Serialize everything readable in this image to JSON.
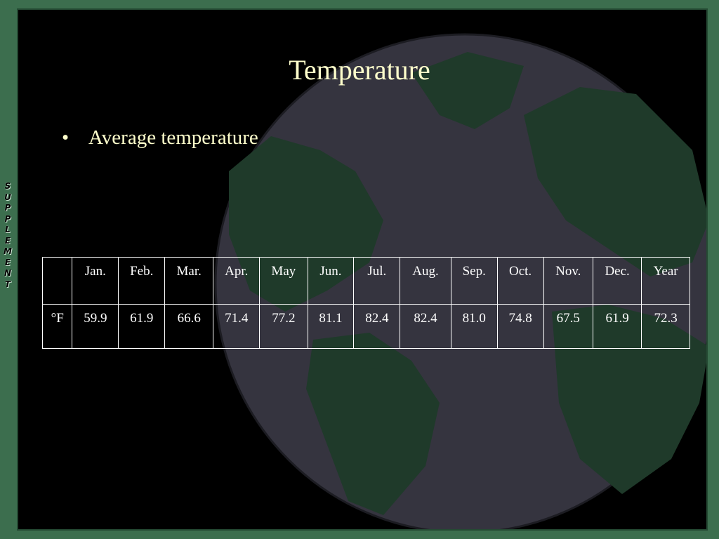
{
  "slide": {
    "title": "Temperature",
    "bullet": "Average temperature",
    "side_label": "SUPPLEMENT",
    "table": {
      "header": [
        "Jan.",
        "Feb.",
        "Mar.",
        "Apr.",
        "May",
        "Jun.",
        "Jul.",
        "Aug.",
        "Sep.",
        "Oct.",
        "Nov.",
        "Dec.",
        "Year"
      ],
      "row_label": "°F",
      "row": [
        "59.9",
        "61.9",
        "66.6",
        "71.4",
        "77.2",
        "81.1",
        "82.4",
        "82.4",
        "81.0",
        "74.8",
        "67.5",
        "61.9",
        "72.3"
      ]
    }
  }
}
